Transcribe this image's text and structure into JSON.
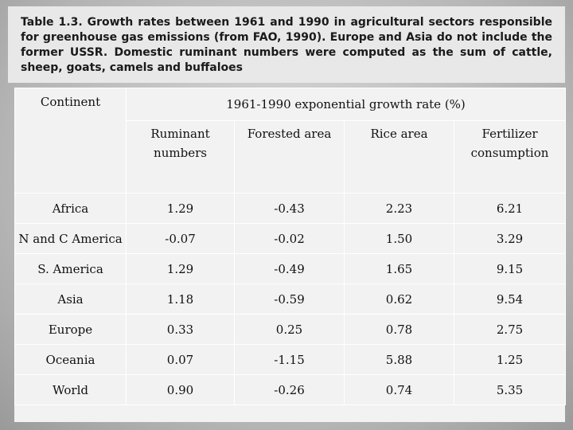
{
  "caption": "Table 1.3. Growth rates between 1961 and 1990 in agricultural sectors responsible for greenhouse gas emissions (from FAO, 1990). Europe and Asia do not include the former USSR. Domestic ruminant numbers were computed as the sum of cattle, sheep, goats, camels and buffaloes",
  "table": {
    "col_continent": "Continent",
    "group_header": "1961-1990 exponential growth rate (%)",
    "columns": [
      "Ruminant numbers",
      "Forested area",
      "Rice area",
      "Fertilizer consumption"
    ],
    "rows": [
      {
        "continent": "Africa",
        "values": [
          "1.29",
          "-0.43",
          "2.23",
          "6.21"
        ]
      },
      {
        "continent": "N and C America",
        "values": [
          "-0.07",
          "-0.02",
          "1.50",
          "3.29"
        ]
      },
      {
        "continent": "S. America",
        "values": [
          "1.29",
          "-0.49",
          "1.65",
          "9.15"
        ]
      },
      {
        "continent": "Asia",
        "values": [
          "1.18",
          "-0.59",
          "0.62",
          "9.54"
        ]
      },
      {
        "continent": "Europe",
        "values": [
          "0.33",
          "0.25",
          "0.78",
          "2.75"
        ]
      },
      {
        "continent": "Oceania",
        "values": [
          "0.07",
          "-1.15",
          "5.88",
          "1.25"
        ]
      },
      {
        "continent": "World",
        "values": [
          "0.90",
          "-0.26",
          "0.74",
          "5.35"
        ]
      }
    ]
  }
}
